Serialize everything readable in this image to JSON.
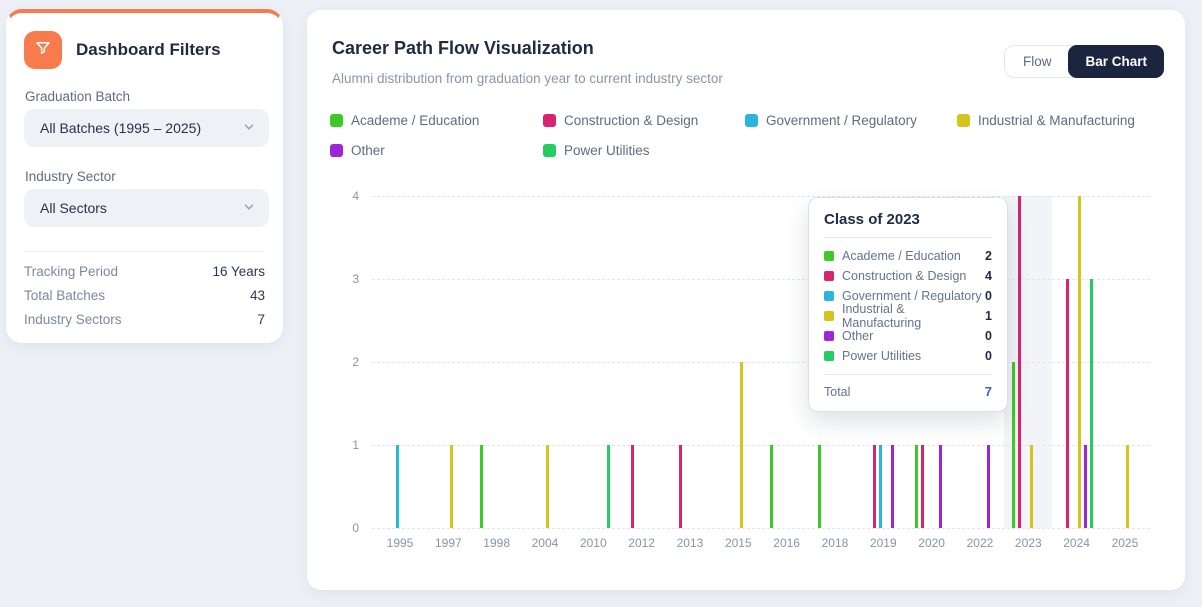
{
  "sidebar": {
    "title": "Dashboard Filters",
    "graduation_batch": {
      "label": "Graduation Batch",
      "value": "All Batches (1995 – 2025)"
    },
    "industry_sector": {
      "label": "Industry Sector",
      "value": "All Sectors"
    },
    "stats": [
      {
        "label": "Tracking Period",
        "value": "16 Years"
      },
      {
        "label": "Total Batches",
        "value": "43"
      },
      {
        "label": "Industry Sectors",
        "value": "7"
      }
    ],
    "accent_color": "#f87b4d"
  },
  "main": {
    "title": "Career Path Flow Visualization",
    "subtitle": "Alumni distribution from graduation year to current industry sector",
    "toggle": {
      "options": [
        "Flow",
        "Bar Chart"
      ],
      "active": "Bar Chart"
    }
  },
  "tooltip": {
    "title": "Class of 2023",
    "rows": [
      {
        "label": "Academe / Education",
        "value": "2",
        "color": "#3ec928"
      },
      {
        "label": "Construction & Design",
        "value": "4",
        "color": "#d6246f"
      },
      {
        "label": "Government / Regulatory",
        "value": "0",
        "color": "#2ab5d9"
      },
      {
        "label": "Industrial & Manufacturing",
        "value": "1",
        "color": "#d4c41e"
      },
      {
        "label": "Other",
        "value": "0",
        "color": "#9c27d9"
      },
      {
        "label": "Power Utilities",
        "value": "0",
        "color": "#23cd63"
      }
    ],
    "total_label": "Total",
    "total_value": "7",
    "total_color": "#3b5bdb"
  },
  "chart_data": {
    "type": "bar",
    "title": "Career Path Flow Visualization",
    "categories": [
      "1995",
      "1997",
      "1998",
      "2004",
      "2010",
      "2012",
      "2013",
      "2015",
      "2016",
      "2018",
      "2019",
      "2020",
      "2022",
      "2023",
      "2024",
      "2025"
    ],
    "series": [
      {
        "name": "Academe / Education",
        "color": "#3ec928",
        "values": [
          0,
          0,
          1,
          0,
          0,
          0,
          0,
          0,
          1,
          1,
          0,
          1,
          0,
          2,
          0,
          0
        ]
      },
      {
        "name": "Construction & Design",
        "color": "#d6246f",
        "values": [
          0,
          0,
          0,
          0,
          0,
          1,
          1,
          0,
          0,
          0,
          1,
          1,
          0,
          4,
          3,
          0
        ]
      },
      {
        "name": "Government / Regulatory",
        "color": "#2ab5d9",
        "values": [
          1,
          0,
          0,
          0,
          0,
          0,
          0,
          0,
          0,
          0,
          1,
          0,
          0,
          0,
          0,
          0
        ]
      },
      {
        "name": "Industrial & Manufacturing",
        "color": "#d4c41e",
        "values": [
          0,
          1,
          0,
          1,
          0,
          0,
          0,
          2,
          0,
          0,
          0,
          0,
          0,
          1,
          4,
          1
        ]
      },
      {
        "name": "Other",
        "color": "#9c27d9",
        "values": [
          0,
          0,
          0,
          0,
          0,
          0,
          0,
          0,
          0,
          0,
          1,
          1,
          1,
          0,
          1,
          0
        ]
      },
      {
        "name": "Power Utilities",
        "color": "#23cd63",
        "values": [
          0,
          0,
          0,
          0,
          1,
          0,
          0,
          0,
          0,
          0,
          0,
          0,
          0,
          0,
          3,
          0
        ]
      }
    ],
    "ylim": [
      0,
      4
    ],
    "yticks": [
      0,
      1,
      2,
      3,
      4
    ],
    "xlabel": "",
    "ylabel": "",
    "grid": "dashed-horizontal",
    "legend_position": "top",
    "highlighted_category": "2023"
  }
}
